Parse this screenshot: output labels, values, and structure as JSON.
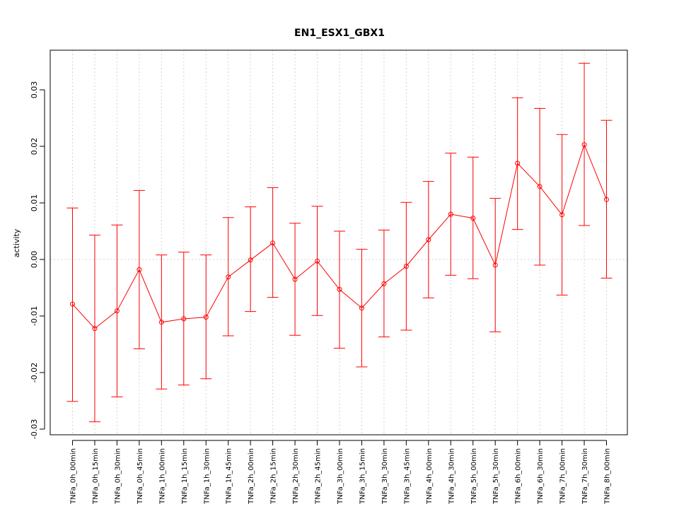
{
  "chart_data": {
    "type": "line",
    "title": "EN1_ESX1_GBX1",
    "xlabel": "",
    "ylabel": "activity",
    "ylim": [
      -0.031,
      0.037
    ],
    "yticks": [
      -0.03,
      -0.02,
      -0.01,
      0.0,
      0.01,
      0.02,
      0.03
    ],
    "ytick_labels": [
      "-0.03",
      "-0.02",
      "-0.01",
      "0.00",
      "0.01",
      "0.02",
      "0.03"
    ],
    "grid": true,
    "series_color": "#ff0000",
    "grid_color": "#d3d3d3",
    "categories": [
      "TNFa_0h_00min",
      "TNFa_0h_15min",
      "TNFa_0h_30min",
      "TNFa_0h_45min",
      "TNFa_1h_00min",
      "TNFa_1h_15min",
      "TNFa_1h_30min",
      "TNFa_1h_45min",
      "TNFa_2h_00min",
      "TNFa_2h_15min",
      "TNFa_2h_30min",
      "TNFa_2h_45min",
      "TNFa_3h_00min",
      "TNFa_3h_15min",
      "TNFa_3h_30min",
      "TNFa_3h_45min",
      "TNFa_4h_00min",
      "TNFa_4h_30min",
      "TNFa_5h_00min",
      "TNFa_5h_30min",
      "TNFa_6h_00min",
      "TNFa_6h_30min",
      "TNFa_7h_00min",
      "TNFa_7h_30min",
      "TNFa_8h_00min"
    ],
    "series": [
      {
        "values": [
          -0.0079,
          -0.0122,
          -0.0091,
          -0.0018,
          -0.0111,
          -0.0105,
          -0.0102,
          -0.0031,
          -0.0001,
          0.0029,
          -0.0035,
          -0.0003,
          -0.0053,
          -0.0086,
          -0.0043,
          -0.0012,
          0.0035,
          0.008,
          0.0073,
          -0.001,
          0.017,
          0.0129,
          0.0079,
          0.0203,
          0.0106
        ],
        "upper": [
          0.0091,
          0.0043,
          0.0061,
          0.0122,
          0.0008,
          0.0013,
          0.0008,
          0.0074,
          0.0093,
          0.0127,
          0.0064,
          0.0094,
          0.005,
          0.0018,
          0.0052,
          0.0101,
          0.0138,
          0.0188,
          0.0181,
          0.0108,
          0.0286,
          0.0267,
          0.0221,
          0.0347,
          0.0246
        ],
        "lower": [
          -0.0251,
          -0.0287,
          -0.0243,
          -0.0158,
          -0.0229,
          -0.0222,
          -0.0211,
          -0.0135,
          -0.0092,
          -0.0067,
          -0.0134,
          -0.0099,
          -0.0157,
          -0.019,
          -0.0137,
          -0.0125,
          -0.0068,
          -0.0028,
          -0.0034,
          -0.0128,
          0.0053,
          -0.001,
          -0.0063,
          0.006,
          -0.0033
        ]
      }
    ]
  }
}
